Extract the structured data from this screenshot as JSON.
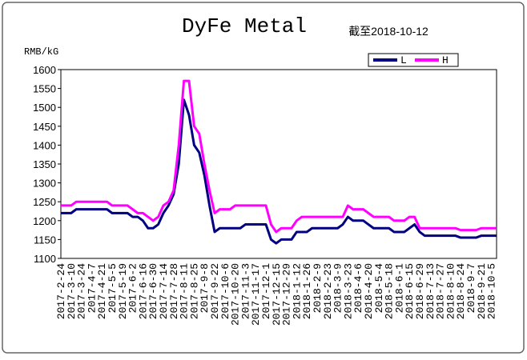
{
  "chart_data": {
    "type": "line",
    "title": "DyFe Metal",
    "subtitle": "截至2018-10-12",
    "y_label": "RMB/kG",
    "categories": [
      "2017-2-24",
      null,
      "2017-3-10",
      null,
      "2017-3-24",
      null,
      "2017-4-7",
      null,
      "2017-4-21",
      null,
      "2017-5-5",
      null,
      "2017-5-19",
      null,
      "2017-6-2",
      null,
      "2017-6-16",
      null,
      "2017-6-30",
      null,
      "2017-7-14",
      null,
      "2017-7-28",
      null,
      "2017-8-11",
      null,
      "2017-8-25",
      null,
      "2017-9-8",
      null,
      "2017-9-22",
      null,
      "2017-10-6",
      null,
      "2017-10-20",
      null,
      "2017-11-3",
      null,
      "2017-11-17",
      null,
      "2017-12-1",
      null,
      "2017-12-15",
      null,
      "2017-12-29",
      null,
      "2018-1-12",
      null,
      "2018-1-26",
      null,
      "2018-2-9",
      null,
      "2018-2-23",
      null,
      "2018-3-9",
      null,
      "2018-3-23",
      null,
      "2018-4-6",
      null,
      "2018-4-20",
      null,
      "2018-5-4",
      null,
      "2018-5-18",
      null,
      "2018-6-1",
      null,
      "2018-6-15",
      null,
      "2018-6-29",
      null,
      "2018-7-13",
      null,
      "2018-7-27",
      null,
      "2018-8-10",
      null,
      "2018-8-24",
      null,
      "2018-9-7",
      null,
      "2018-9-21",
      null,
      "2018-10-5",
      null
    ],
    "series": [
      {
        "name": "L",
        "color": "#000080",
        "values": [
          1220,
          1220,
          1220,
          1230,
          1230,
          1230,
          1230,
          1230,
          1230,
          1230,
          1220,
          1220,
          1220,
          1220,
          1210,
          1210,
          1200,
          1180,
          1180,
          1190,
          1220,
          1240,
          1270,
          1350,
          1520,
          1480,
          1400,
          1380,
          1320,
          1240,
          1170,
          1180,
          1180,
          1180,
          1180,
          1180,
          1190,
          1190,
          1190,
          1190,
          1190,
          1150,
          1140,
          1150,
          1150,
          1150,
          1170,
          1170,
          1170,
          1180,
          1180,
          1180,
          1180,
          1180,
          1180,
          1190,
          1210,
          1200,
          1200,
          1200,
          1190,
          1180,
          1180,
          1180,
          1180,
          1170,
          1170,
          1170,
          1180,
          1190,
          1170,
          1160,
          1160,
          1160,
          1160,
          1160,
          1160,
          1160,
          1155,
          1155,
          1155,
          1155,
          1160,
          1160,
          1160,
          1160
        ]
      },
      {
        "name": "H",
        "color": "#ff00ff",
        "values": [
          1240,
          1240,
          1240,
          1250,
          1250,
          1250,
          1250,
          1250,
          1250,
          1250,
          1240,
          1240,
          1240,
          1240,
          1230,
          1220,
          1220,
          1210,
          1200,
          1210,
          1240,
          1250,
          1280,
          1400,
          1570,
          1570,
          1450,
          1430,
          1350,
          1280,
          1220,
          1230,
          1230,
          1230,
          1240,
          1240,
          1240,
          1240,
          1240,
          1240,
          1240,
          1190,
          1170,
          1180,
          1180,
          1180,
          1200,
          1210,
          1210,
          1210,
          1210,
          1210,
          1210,
          1210,
          1210,
          1210,
          1240,
          1230,
          1230,
          1230,
          1220,
          1210,
          1210,
          1210,
          1210,
          1200,
          1200,
          1200,
          1210,
          1210,
          1180,
          1180,
          1180,
          1180,
          1180,
          1180,
          1180,
          1180,
          1175,
          1175,
          1175,
          1175,
          1180,
          1180,
          1180,
          1180
        ]
      }
    ],
    "ylim": [
      1100,
      1600
    ],
    "yticks": [
      1100,
      1150,
      1200,
      1250,
      1300,
      1350,
      1400,
      1450,
      1500,
      1550,
      1600
    ],
    "grid": false,
    "legend": "upper right"
  }
}
